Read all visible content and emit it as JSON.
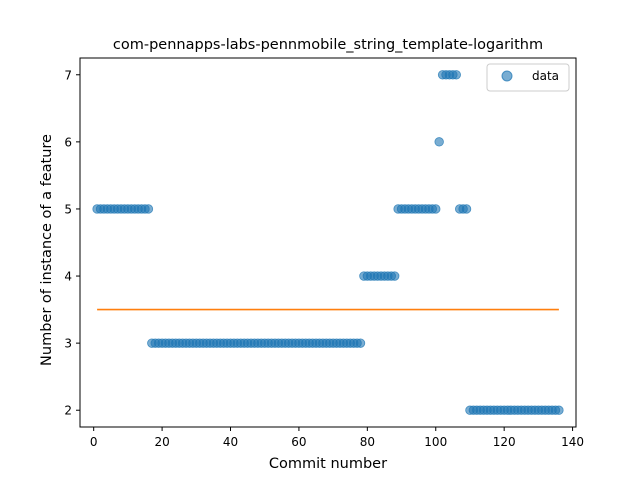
{
  "chart_data": {
    "type": "scatter",
    "title": "com-pennapps-labs-pennmobile_string_template-logarithm",
    "xlabel": "Commit number",
    "ylabel": "Number of instance of a feature",
    "xlim": [
      -4,
      141
    ],
    "ylim": [
      1.75,
      7.25
    ],
    "xticks": [
      0,
      20,
      40,
      60,
      80,
      100,
      120,
      140
    ],
    "yticks": [
      2,
      3,
      4,
      5,
      6,
      7
    ],
    "grid": false,
    "legend": {
      "placement": "top-right",
      "entries": [
        "data"
      ]
    },
    "colors": {
      "points": "#1f77b4",
      "line": "#ff7f0e"
    },
    "series": [
      {
        "name": "data",
        "kind": "scatter",
        "segments": [
          {
            "x_start": 1,
            "x_end": 16,
            "y": 5
          },
          {
            "x_start": 17,
            "x_end": 78,
            "y": 3
          },
          {
            "x_start": 79,
            "x_end": 88,
            "y": 4
          },
          {
            "x_start": 89,
            "x_end": 100,
            "y": 5
          },
          {
            "x_start": 101,
            "x_end": 101,
            "y": 6
          },
          {
            "x_start": 102,
            "x_end": 106,
            "y": 7
          },
          {
            "x_start": 107,
            "x_end": 109,
            "y": 5
          },
          {
            "x_start": 110,
            "x_end": 136,
            "y": 2
          }
        ]
      },
      {
        "kind": "line",
        "x": [
          1,
          136
        ],
        "y": [
          3.5,
          3.5
        ]
      }
    ]
  }
}
